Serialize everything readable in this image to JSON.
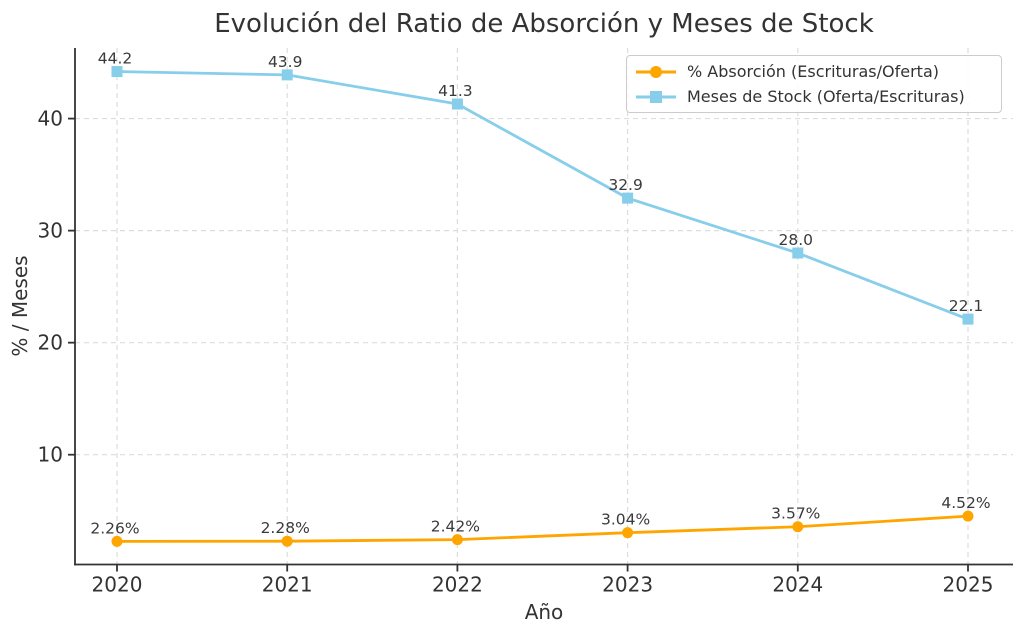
{
  "chart_data": {
    "type": "line",
    "title": "Evolución del Ratio de Absorción y Meses de Stock",
    "xlabel": "Año",
    "ylabel": "% / Meses",
    "categories": [
      "2020",
      "2021",
      "2022",
      "2023",
      "2024",
      "2025"
    ],
    "yticks": [
      10,
      20,
      30,
      40
    ],
    "ylim": [
      0.2,
      46.3
    ],
    "grid": true,
    "legend_position": "upper right",
    "series": [
      {
        "name": "% Absorción (Escrituras/Oferta)",
        "values": [
          2.26,
          2.28,
          2.42,
          3.04,
          3.57,
          4.52
        ],
        "point_labels": [
          "2.26%",
          "2.28%",
          "2.42%",
          "3.04%",
          "3.57%",
          "4.52%"
        ],
        "color": "#FFA500",
        "marker": "circle"
      },
      {
        "name": "Meses de Stock (Oferta/Escrituras)",
        "values": [
          44.2,
          43.9,
          41.3,
          32.9,
          28.0,
          22.1
        ],
        "point_labels": [
          "44.2",
          "43.9",
          "41.3",
          "32.9",
          "28.0",
          "22.1"
        ],
        "color": "#87CEEB",
        "marker": "square"
      }
    ]
  },
  "colors": {
    "background": "#FFFFFF",
    "text": "#333333",
    "point_label_text": "#3A3A3A",
    "grid": "#DDDDDD",
    "spine": "#333333",
    "legend_border": "#CCCCCC"
  }
}
